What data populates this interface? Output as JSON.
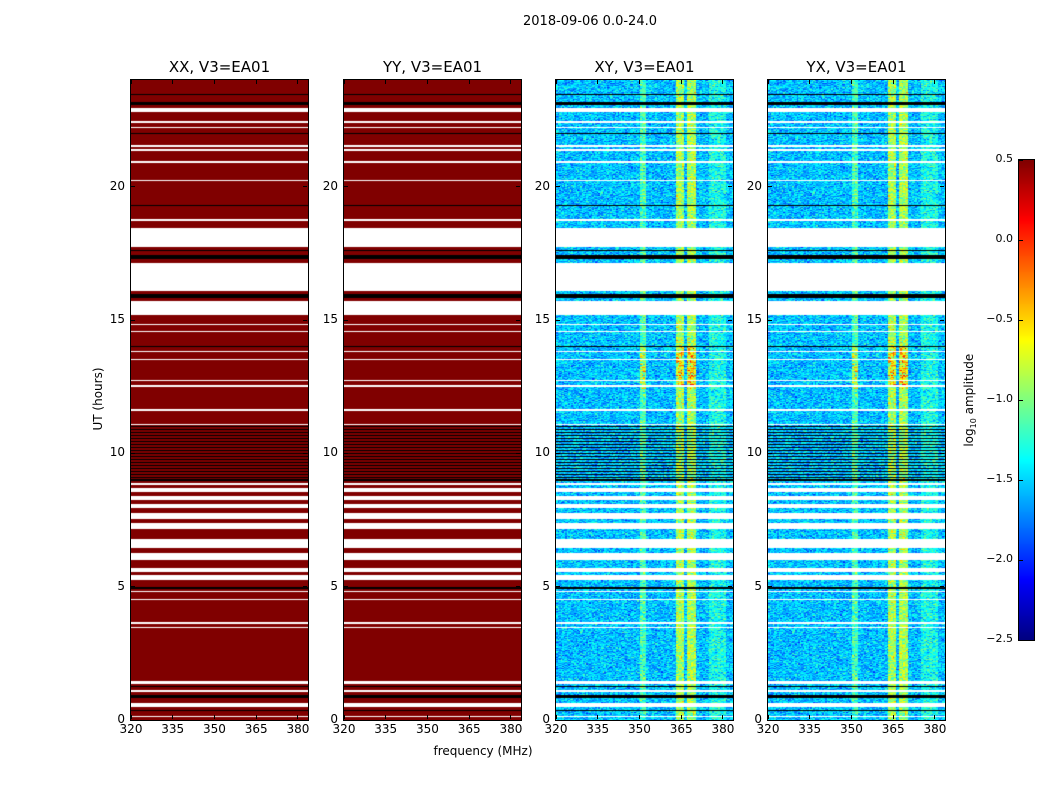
{
  "figure_title": "2018-09-06 0.0-24.0",
  "chart_data": {
    "type": "heatmap",
    "title": "2018-09-06 0.0-24.0",
    "xlabel": "frequency (MHz)",
    "ylabel": "UT (hours)",
    "xlim": [
      320,
      383.6
    ],
    "ylim": [
      0,
      24
    ],
    "xticks": [
      320,
      335,
      350,
      365,
      380
    ],
    "yticks": [
      0,
      5,
      10,
      15,
      20
    ],
    "panels": [
      {
        "title": "XX, V3=EA01",
        "kind": "parallel"
      },
      {
        "title": "YY, V3=EA01",
        "kind": "parallel"
      },
      {
        "title": "XY, V3=EA01",
        "kind": "cross"
      },
      {
        "title": "YX, V3=EA01",
        "kind": "cross"
      }
    ],
    "colormap": "jet",
    "parallel_value": 0.5,
    "cross_background_value": -1.55,
    "flagged_white_hours": [
      [
        22.8,
        22.95
      ],
      [
        22.4,
        22.45
      ],
      [
        22.2,
        22.25
      ],
      [
        21.5,
        21.55
      ],
      [
        21.35,
        21.4
      ],
      [
        20.9,
        20.95
      ],
      [
        20.2,
        20.25
      ],
      [
        18.7,
        18.8
      ],
      [
        17.75,
        18.45
      ],
      [
        17.05,
        17.15
      ],
      [
        16.1,
        17.05
      ],
      [
        15.2,
        15.7
      ],
      [
        14.8,
        14.85
      ],
      [
        14.55,
        14.6
      ],
      [
        13.8,
        13.85
      ],
      [
        13.5,
        13.55
      ],
      [
        12.7,
        12.75
      ],
      [
        12.5,
        12.55
      ],
      [
        11.6,
        11.65
      ],
      [
        11.05,
        11.1
      ],
      [
        8.8,
        8.9
      ],
      [
        8.55,
        8.7
      ],
      [
        8.25,
        8.4
      ],
      [
        7.95,
        8.1
      ],
      [
        7.55,
        7.75
      ],
      [
        7.15,
        7.4
      ],
      [
        6.45,
        6.8
      ],
      [
        6.0,
        6.25
      ],
      [
        5.55,
        5.7
      ],
      [
        5.25,
        5.45
      ],
      [
        4.8,
        4.85
      ],
      [
        4.5,
        4.55
      ],
      [
        3.6,
        3.68
      ],
      [
        3.45,
        3.5
      ],
      [
        1.35,
        1.45
      ],
      [
        1.05,
        1.12
      ],
      [
        0.5,
        0.65
      ],
      [
        0.1,
        0.15
      ]
    ],
    "black_line_hours": [
      23.45,
      23.1,
      23.15,
      22.0,
      19.3,
      17.3,
      17.35,
      17.4,
      17.6,
      15.85,
      15.9,
      15.95,
      14.0,
      11.0,
      9.0,
      9.1,
      4.95,
      1.25,
      0.85,
      0.9,
      0.35
    ],
    "dense_black_range_hours": [
      9.2,
      11.0
    ],
    "bright_channels_mhz": [
      {
        "range": [
          350,
          352.5
        ],
        "level": 0.45
      },
      {
        "range": [
          363,
          366
        ],
        "level": 0.75
      },
      {
        "range": [
          367,
          370
        ],
        "level": 0.75
      },
      {
        "range": [
          375,
          381
        ],
        "level": 0.25
      }
    ],
    "hot_spot": {
      "hours": [
        12.4,
        14.0
      ],
      "channels_mhz": [
        [
          363,
          366
        ],
        [
          367,
          370
        ],
        [
          350,
          352.5
        ]
      ],
      "boost": 0.8
    },
    "colorbar": {
      "label_main": "log",
      "label_sub": "10",
      "label_rest": " amplitude",
      "range": [
        -2.5,
        0.5
      ],
      "ticks": [
        0.5,
        0.0,
        -0.5,
        -1.0,
        -1.5,
        -2.0,
        -2.5
      ],
      "tick_labels": [
        "0.5",
        "0.0",
        "−0.5",
        "−1.0",
        "−1.5",
        "−2.0",
        "−2.5"
      ]
    }
  }
}
